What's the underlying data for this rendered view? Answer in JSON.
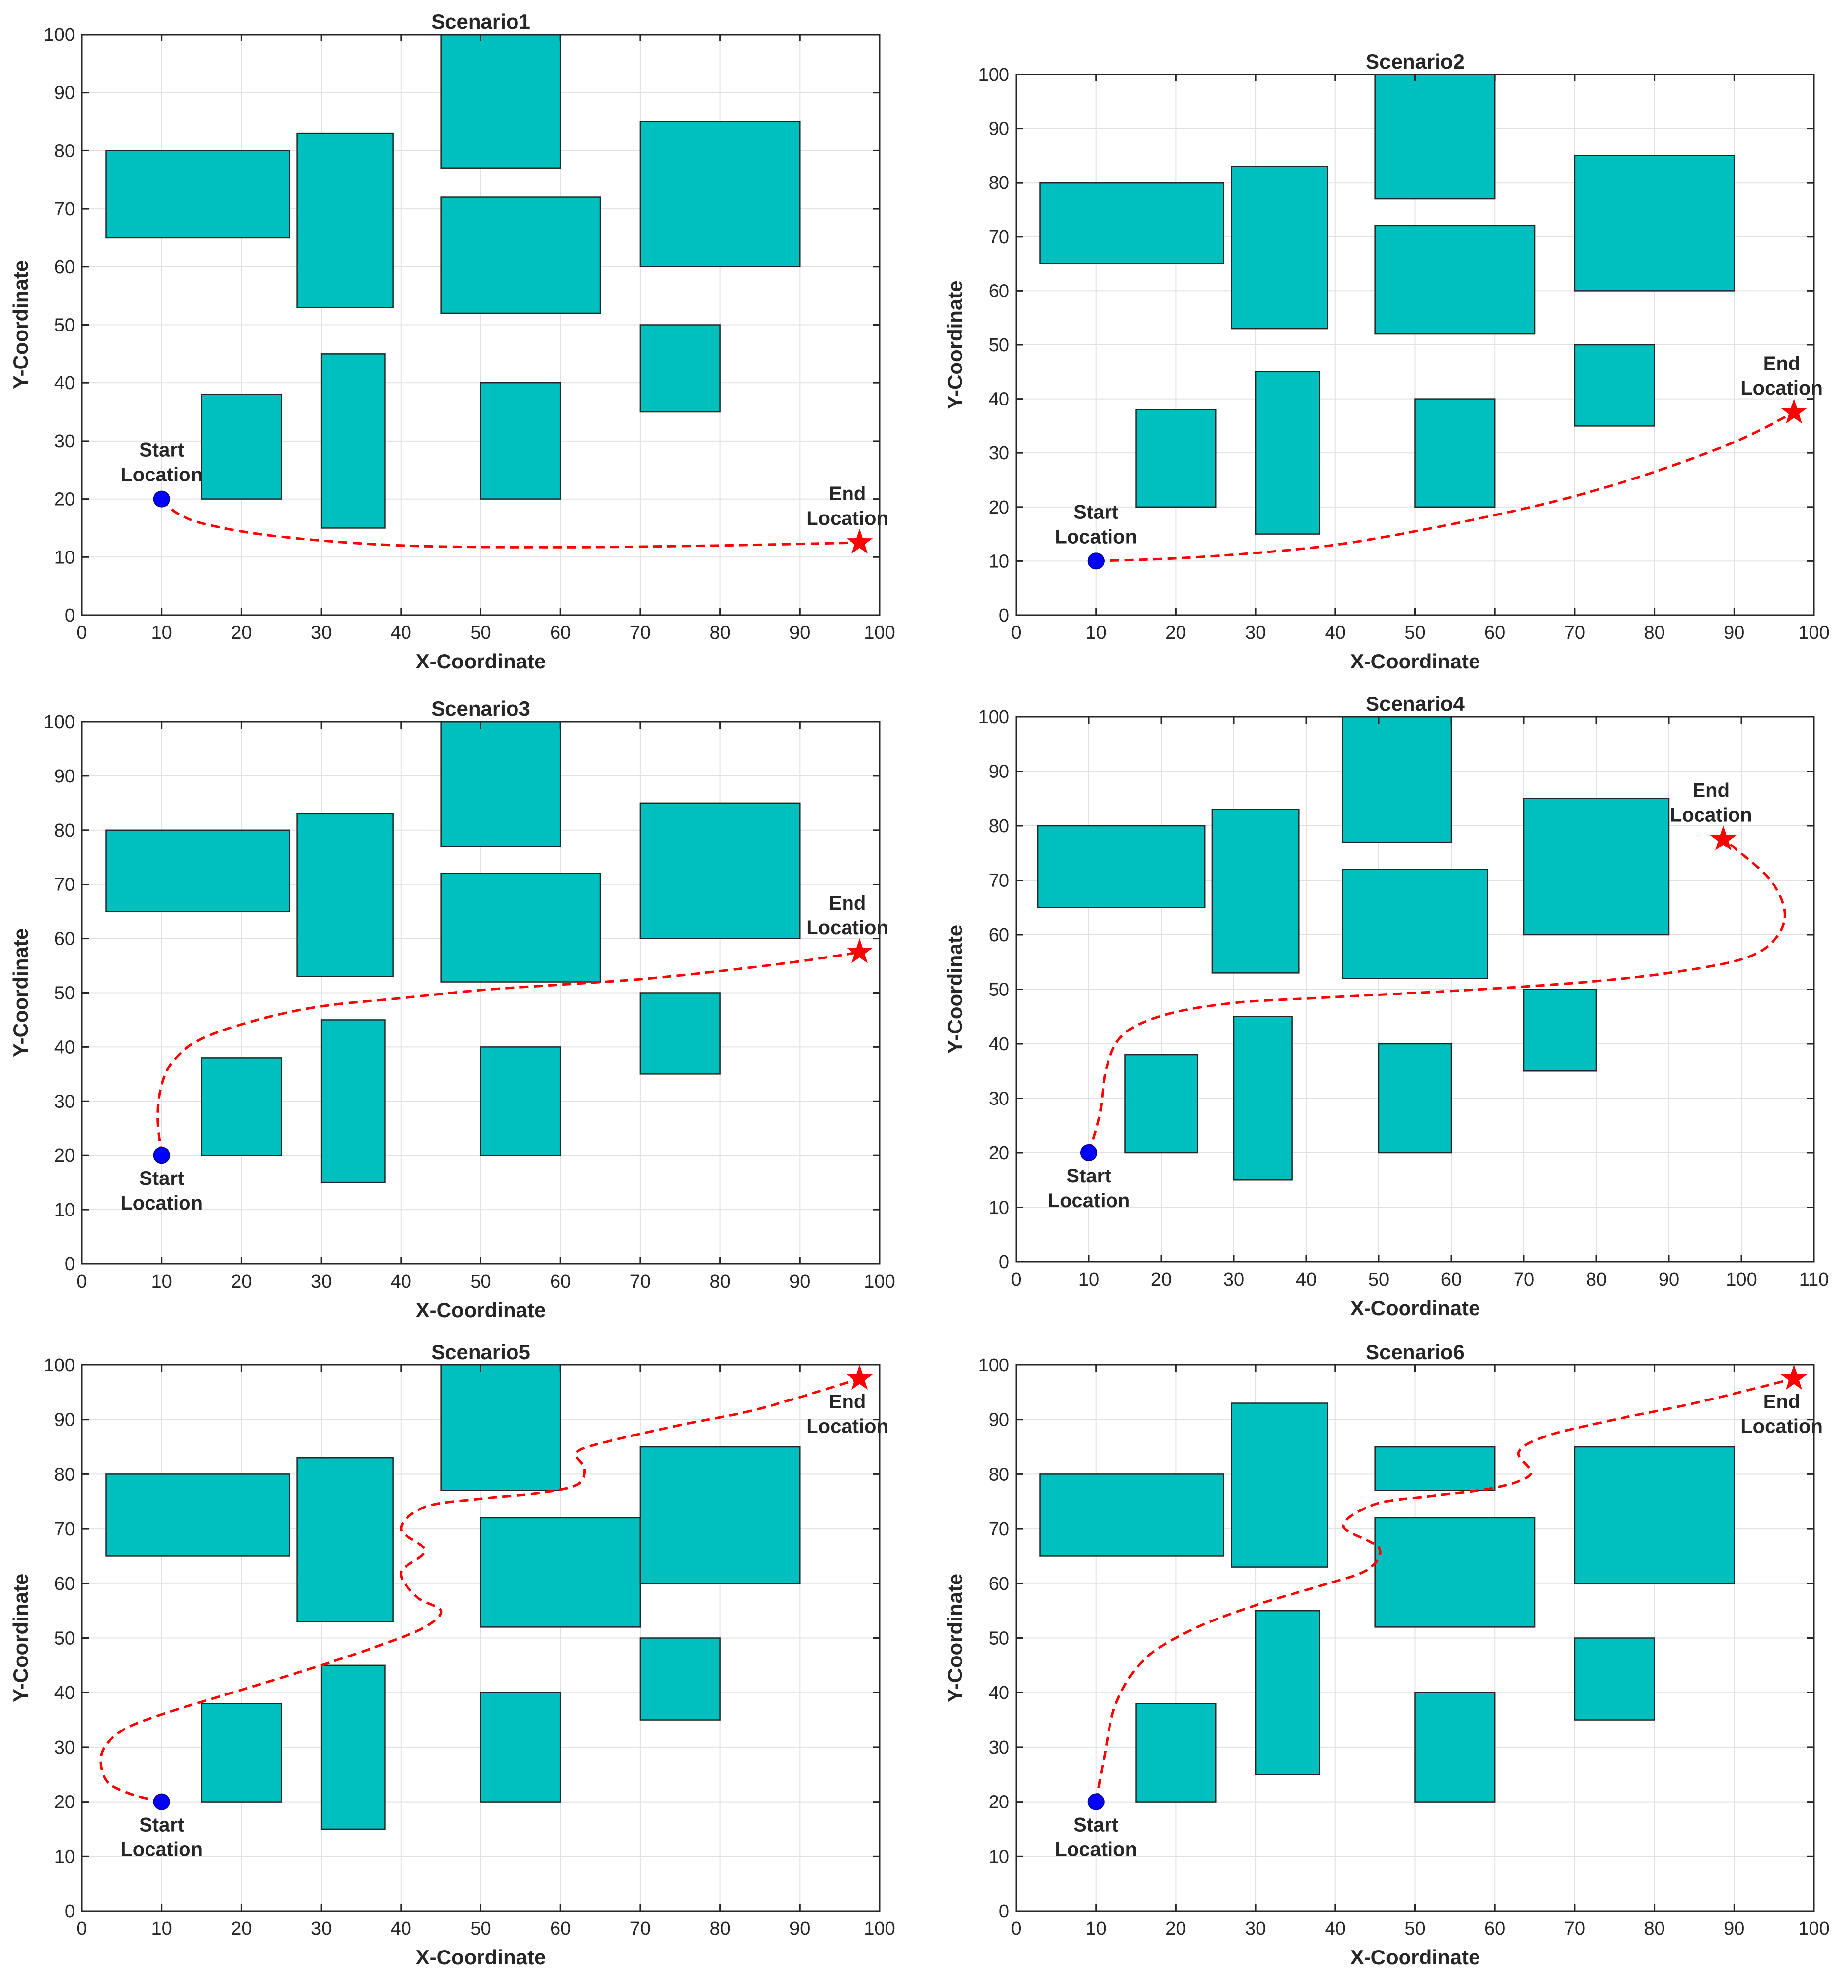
{
  "figure": {
    "obstacle_color": "#00bfbf",
    "path_color": "#ff0000",
    "start_color": "#0000ff",
    "end_color": "#ff0000"
  },
  "chart_data": [
    {
      "type": "scatter",
      "title": "Scenario1",
      "xlabel": "X-Coordinate",
      "ylabel": "Y-Coordinate",
      "xlim": [
        0,
        100
      ],
      "ylim": [
        0,
        100
      ],
      "xticks": [
        0,
        10,
        20,
        30,
        40,
        50,
        60,
        70,
        80,
        90,
        100
      ],
      "yticks": [
        0,
        10,
        20,
        30,
        40,
        50,
        60,
        70,
        80,
        90,
        100
      ],
      "grid": true,
      "obstacles": [
        [
          3,
          65,
          26,
          80
        ],
        [
          27,
          53,
          39,
          83
        ],
        [
          45,
          77,
          60,
          100
        ],
        [
          45,
          52,
          65,
          72
        ],
        [
          70,
          60,
          90,
          85
        ],
        [
          15,
          20,
          25,
          38
        ],
        [
          30,
          15,
          38,
          45
        ],
        [
          50,
          20,
          60,
          40
        ],
        [
          70,
          35,
          80,
          50
        ]
      ],
      "start": [
        10,
        20
      ],
      "end": [
        97.5,
        12.5
      ],
      "start_label": [
        "Start",
        "Location"
      ],
      "end_label": [
        "End",
        "Location"
      ],
      "start_label_pos": "above",
      "end_label_pos": "above",
      "path": [
        [
          10,
          20
        ],
        [
          12,
          17.5
        ],
        [
          16,
          15.5
        ],
        [
          25,
          13.5
        ],
        [
          40,
          12
        ],
        [
          60,
          11.7
        ],
        [
          80,
          12
        ],
        [
          97.5,
          12.5
        ]
      ]
    },
    {
      "type": "scatter",
      "title": "Scenario2",
      "xlabel": "X-Coordinate",
      "ylabel": "Y-Coordinate",
      "xlim": [
        0,
        100
      ],
      "ylim": [
        0,
        100
      ],
      "xticks": [
        0,
        10,
        20,
        30,
        40,
        50,
        60,
        70,
        80,
        90,
        100
      ],
      "yticks": [
        0,
        10,
        20,
        30,
        40,
        50,
        60,
        70,
        80,
        90,
        100
      ],
      "grid": true,
      "obstacles": [
        [
          3,
          65,
          26,
          80
        ],
        [
          27,
          53,
          39,
          83
        ],
        [
          45,
          77,
          60,
          100
        ],
        [
          45,
          52,
          65,
          72
        ],
        [
          70,
          60,
          90,
          85
        ],
        [
          15,
          20,
          25,
          38
        ],
        [
          30,
          15,
          38,
          45
        ],
        [
          50,
          20,
          60,
          40
        ],
        [
          70,
          35,
          80,
          50
        ]
      ],
      "start": [
        10,
        10
      ],
      "end": [
        97.5,
        37.5
      ],
      "start_label": [
        "Start",
        "Location"
      ],
      "end_label": [
        "End",
        "Location"
      ],
      "start_label_pos": "above",
      "end_label_pos": "above",
      "path": [
        [
          10,
          10
        ],
        [
          20,
          10.5
        ],
        [
          30,
          11.5
        ],
        [
          40,
          13
        ],
        [
          50,
          15.5
        ],
        [
          60,
          18.5
        ],
        [
          70,
          22
        ],
        [
          80,
          26.5
        ],
        [
          90,
          32
        ],
        [
          97.5,
          37.5
        ]
      ]
    },
    {
      "type": "scatter",
      "title": "Scenario3",
      "xlabel": "X-Coordinate",
      "ylabel": "Y-Coordinate",
      "xlim": [
        0,
        100
      ],
      "ylim": [
        0,
        100
      ],
      "xticks": [
        0,
        10,
        20,
        30,
        40,
        50,
        60,
        70,
        80,
        90,
        100
      ],
      "yticks": [
        0,
        10,
        20,
        30,
        40,
        50,
        60,
        70,
        80,
        90,
        100
      ],
      "grid": true,
      "obstacles": [
        [
          3,
          65,
          26,
          80
        ],
        [
          27,
          53,
          39,
          83
        ],
        [
          45,
          77,
          60,
          100
        ],
        [
          45,
          52,
          65,
          72
        ],
        [
          70,
          60,
          90,
          85
        ],
        [
          15,
          20,
          25,
          38
        ],
        [
          30,
          15,
          38,
          45
        ],
        [
          50,
          20,
          60,
          40
        ],
        [
          70,
          35,
          80,
          50
        ]
      ],
      "start": [
        10,
        20
      ],
      "end": [
        97.5,
        57.5
      ],
      "start_label": [
        "Start",
        "Location"
      ],
      "end_label": [
        "End",
        "Location"
      ],
      "start_label_pos": "below",
      "end_label_pos": "above",
      "path": [
        [
          10,
          20
        ],
        [
          9.5,
          27
        ],
        [
          10,
          33
        ],
        [
          11.5,
          37.5
        ],
        [
          15,
          41.5
        ],
        [
          22,
          45
        ],
        [
          30,
          47.5
        ],
        [
          40,
          49
        ],
        [
          50,
          50.5
        ],
        [
          60,
          51.5
        ],
        [
          70,
          52.5
        ],
        [
          80,
          54
        ],
        [
          90,
          55.8
        ],
        [
          97.5,
          57.5
        ]
      ]
    },
    {
      "type": "scatter",
      "title": "Scenario4",
      "xlabel": "X-Coordinate",
      "ylabel": "Y-Coordinate",
      "xlim": [
        0,
        110
      ],
      "ylim": [
        0,
        100
      ],
      "xticks": [
        0,
        10,
        20,
        30,
        40,
        50,
        60,
        70,
        80,
        90,
        100,
        110
      ],
      "yticks": [
        0,
        10,
        20,
        30,
        40,
        50,
        60,
        70,
        80,
        90,
        100
      ],
      "grid": true,
      "obstacles": [
        [
          3,
          65,
          26,
          80
        ],
        [
          27,
          53,
          39,
          83
        ],
        [
          45,
          77,
          60,
          100
        ],
        [
          45,
          52,
          65,
          72
        ],
        [
          70,
          60,
          90,
          85
        ],
        [
          15,
          20,
          25,
          38
        ],
        [
          30,
          15,
          38,
          45
        ],
        [
          50,
          20,
          60,
          40
        ],
        [
          70,
          35,
          80,
          50
        ]
      ],
      "start": [
        10,
        20
      ],
      "end": [
        97.5,
        77.5
      ],
      "start_label": [
        "Start",
        "Location"
      ],
      "end_label": [
        "End",
        "Location"
      ],
      "start_label_pos": "below",
      "end_label_pos": "above",
      "path": [
        [
          10,
          20
        ],
        [
          11.5,
          27
        ],
        [
          12.5,
          36
        ],
        [
          15,
          42
        ],
        [
          21,
          45.5
        ],
        [
          30,
          47.5
        ],
        [
          40,
          48.3
        ],
        [
          50,
          49
        ],
        [
          60,
          49.7
        ],
        [
          70,
          50.5
        ],
        [
          80,
          51.5
        ],
        [
          90,
          53
        ],
        [
          100,
          55.5
        ],
        [
          104.5,
          59
        ],
        [
          106,
          64
        ],
        [
          104,
          70
        ],
        [
          99,
          76
        ],
        [
          97.5,
          77.5
        ]
      ]
    },
    {
      "type": "scatter",
      "title": "Scenario5",
      "xlabel": "X-Coordinate",
      "ylabel": "Y-Coordinate",
      "xlim": [
        0,
        100
      ],
      "ylim": [
        0,
        100
      ],
      "xticks": [
        0,
        10,
        20,
        30,
        40,
        50,
        60,
        70,
        80,
        90,
        100
      ],
      "yticks": [
        0,
        10,
        20,
        30,
        40,
        50,
        60,
        70,
        80,
        90,
        100
      ],
      "grid": true,
      "obstacles": [
        [
          3,
          65,
          26,
          80
        ],
        [
          27,
          53,
          39,
          83
        ],
        [
          45,
          77,
          60,
          100
        ],
        [
          50,
          52,
          70,
          72
        ],
        [
          70,
          60,
          90,
          85
        ],
        [
          15,
          20,
          25,
          38
        ],
        [
          30,
          15,
          38,
          45
        ],
        [
          50,
          20,
          60,
          40
        ],
        [
          70,
          35,
          80,
          50
        ]
      ],
      "start": [
        10,
        20
      ],
      "end": [
        97.5,
        97.5
      ],
      "start_label": [
        "Start",
        "Location"
      ],
      "end_label": [
        "End",
        "Location"
      ],
      "start_label_pos": "below",
      "end_label_pos": "below",
      "path": [
        [
          10,
          20
        ],
        [
          6,
          21.5
        ],
        [
          3,
          24
        ],
        [
          2.5,
          29
        ],
        [
          5,
          33
        ],
        [
          10,
          36
        ],
        [
          20,
          40.5
        ],
        [
          30,
          45
        ],
        [
          38,
          49
        ],
        [
          43,
          52
        ],
        [
          45,
          55
        ],
        [
          42,
          57.5
        ],
        [
          40,
          62
        ],
        [
          43,
          66
        ],
        [
          40,
          70
        ],
        [
          43,
          74
        ],
        [
          50,
          75.5
        ],
        [
          57,
          76.5
        ],
        [
          62,
          78
        ],
        [
          63,
          81
        ],
        [
          62,
          84
        ],
        [
          66,
          86
        ],
        [
          75,
          89
        ],
        [
          85,
          92
        ],
        [
          97.5,
          97.5
        ]
      ]
    },
    {
      "type": "scatter",
      "title": "Scenario6",
      "xlabel": "X-Coordinate",
      "ylabel": "Y-Coordinate",
      "xlim": [
        0,
        100
      ],
      "ylim": [
        0,
        100
      ],
      "xticks": [
        0,
        10,
        20,
        30,
        40,
        50,
        60,
        70,
        80,
        90,
        100
      ],
      "yticks": [
        0,
        10,
        20,
        30,
        40,
        50,
        60,
        70,
        80,
        90,
        100
      ],
      "grid": true,
      "obstacles": [
        [
          3,
          65,
          26,
          80
        ],
        [
          27,
          63,
          39,
          93
        ],
        [
          45,
          77,
          60,
          85
        ],
        [
          45,
          52,
          65,
          72
        ],
        [
          70,
          60,
          90,
          85
        ],
        [
          15,
          20,
          25,
          38
        ],
        [
          30,
          25,
          38,
          55
        ],
        [
          50,
          20,
          60,
          40
        ],
        [
          70,
          35,
          80,
          50
        ]
      ],
      "start": [
        10,
        20
      ],
      "end": [
        97.5,
        97.5
      ],
      "start_label": [
        "Start",
        "Location"
      ],
      "end_label": [
        "End",
        "Location"
      ],
      "start_label_pos": "below",
      "end_label_pos": "below",
      "path": [
        [
          10,
          20
        ],
        [
          11,
          28
        ],
        [
          12.5,
          38
        ],
        [
          16,
          46
        ],
        [
          22,
          51.5
        ],
        [
          30,
          56
        ],
        [
          38,
          59.5
        ],
        [
          44,
          62.5
        ],
        [
          45.5,
          66.5
        ],
        [
          41,
          70.5
        ],
        [
          45,
          74.5
        ],
        [
          52,
          76
        ],
        [
          60,
          77.5
        ],
        [
          64.5,
          80
        ],
        [
          63,
          84
        ],
        [
          66.5,
          87
        ],
        [
          75,
          90
        ],
        [
          85,
          93
        ],
        [
          97.5,
          97.5
        ]
      ]
    }
  ]
}
